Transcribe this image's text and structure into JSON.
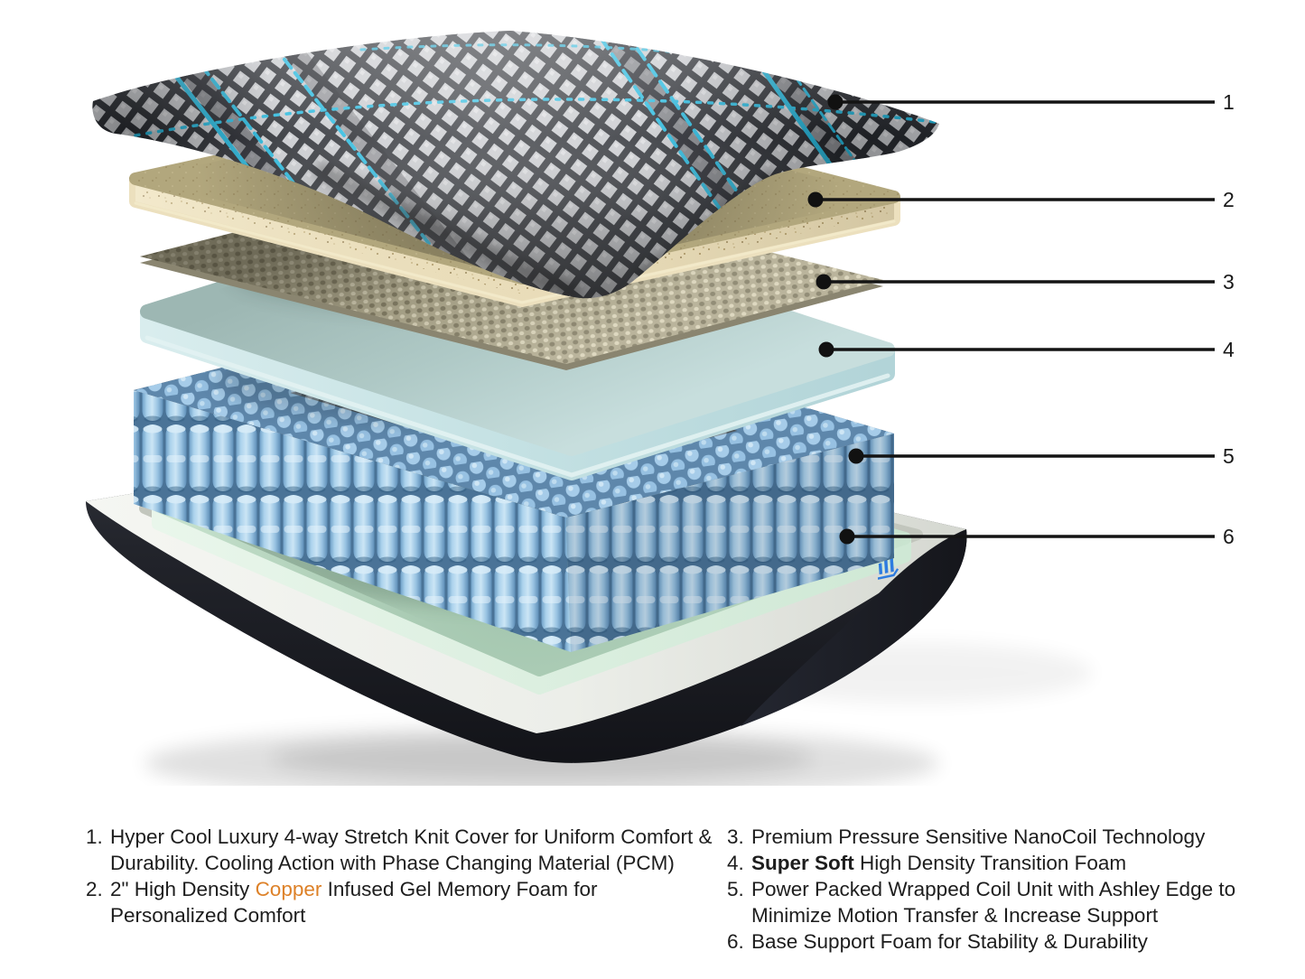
{
  "callouts": [
    {
      "label": "1"
    },
    {
      "label": "2"
    },
    {
      "label": "3"
    },
    {
      "label": "4"
    },
    {
      "label": "5"
    },
    {
      "label": "6"
    }
  ],
  "legend": {
    "columns": [
      {
        "items": [
          {
            "num": "1.",
            "segments": [
              {
                "text": "Hyper Cool Luxury 4-way Stretch Knit Cover for Uniform Comfort &\nDurability. Cooling Action with Phase Changing Material (PCM)"
              }
            ]
          },
          {
            "num": "2.",
            "segments": [
              {
                "text": "2\" High Density "
              },
              {
                "text": "Copper",
                "style": "copper"
              },
              {
                "text": " Infused Gel Memory Foam for\nPersonalized Comfort"
              }
            ]
          }
        ]
      },
      {
        "items": [
          {
            "num": "3.",
            "segments": [
              {
                "text": "Premium Pressure Sensitive NanoCoil Technology"
              }
            ]
          },
          {
            "num": "4.",
            "segments": [
              {
                "text": "Super Soft",
                "style": "bold"
              },
              {
                "text": " High Density Transition Foam"
              }
            ]
          },
          {
            "num": "5.",
            "segments": [
              {
                "text": "Power Packed Wrapped Coil Unit with Ashley Edge to\nMinimize Motion Transfer & Increase Support"
              }
            ]
          },
          {
            "num": "6.",
            "segments": [
              {
                "text": "Base Support Foam for Stability & Durability"
              }
            ]
          }
        ]
      }
    ]
  },
  "colors": {
    "copper_text": "#DD8128",
    "legend_text": "#1D1D1D",
    "callout_line": "#141414",
    "stripe_cyan": "#1CB5DC",
    "knit_dark": "#24262C",
    "knit_light": "#C6C8CC",
    "memory_foam_tan": "#B2A77D",
    "memory_foam_side": "#ECE0BE",
    "nanocoil_tan": "#B1AB90",
    "transition_foam_blue": "#BAD5D4",
    "coil_blue": "#A6CCE9",
    "coil_top_gray": "#7E888F",
    "base_black": "#1A1C21",
    "base_rim_white": "#EFF0EC",
    "base_foam_green": "#BEDCC4",
    "logo_blue": "#2E7CE0"
  }
}
